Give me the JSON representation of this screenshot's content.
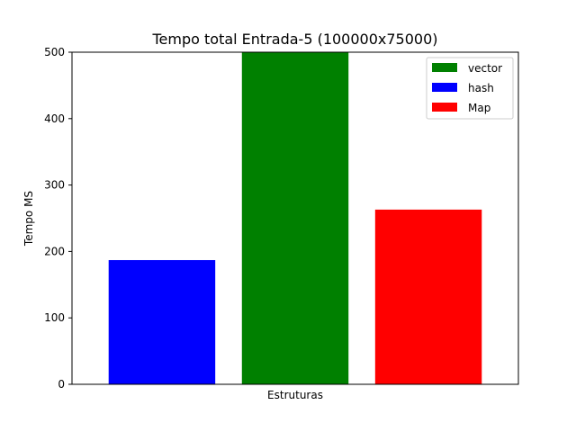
{
  "chart_data": {
    "type": "bar",
    "title": "Tempo total Entrada-5 (100000x75000)",
    "xlabel": "Estruturas",
    "ylabel": "Tempo MS",
    "ylim": [
      0,
      500
    ],
    "yticks": [
      0,
      100,
      200,
      300,
      400,
      500
    ],
    "grid": false,
    "legend_position": "top-right",
    "series": [
      {
        "name": "hash",
        "value": 187,
        "color": "#0000ff"
      },
      {
        "name": "vector",
        "value": 500,
        "color": "#008000"
      },
      {
        "name": "Map",
        "value": 263,
        "color": "#ff0000"
      }
    ],
    "legend_order": [
      "vector",
      "hash",
      "Map"
    ]
  }
}
